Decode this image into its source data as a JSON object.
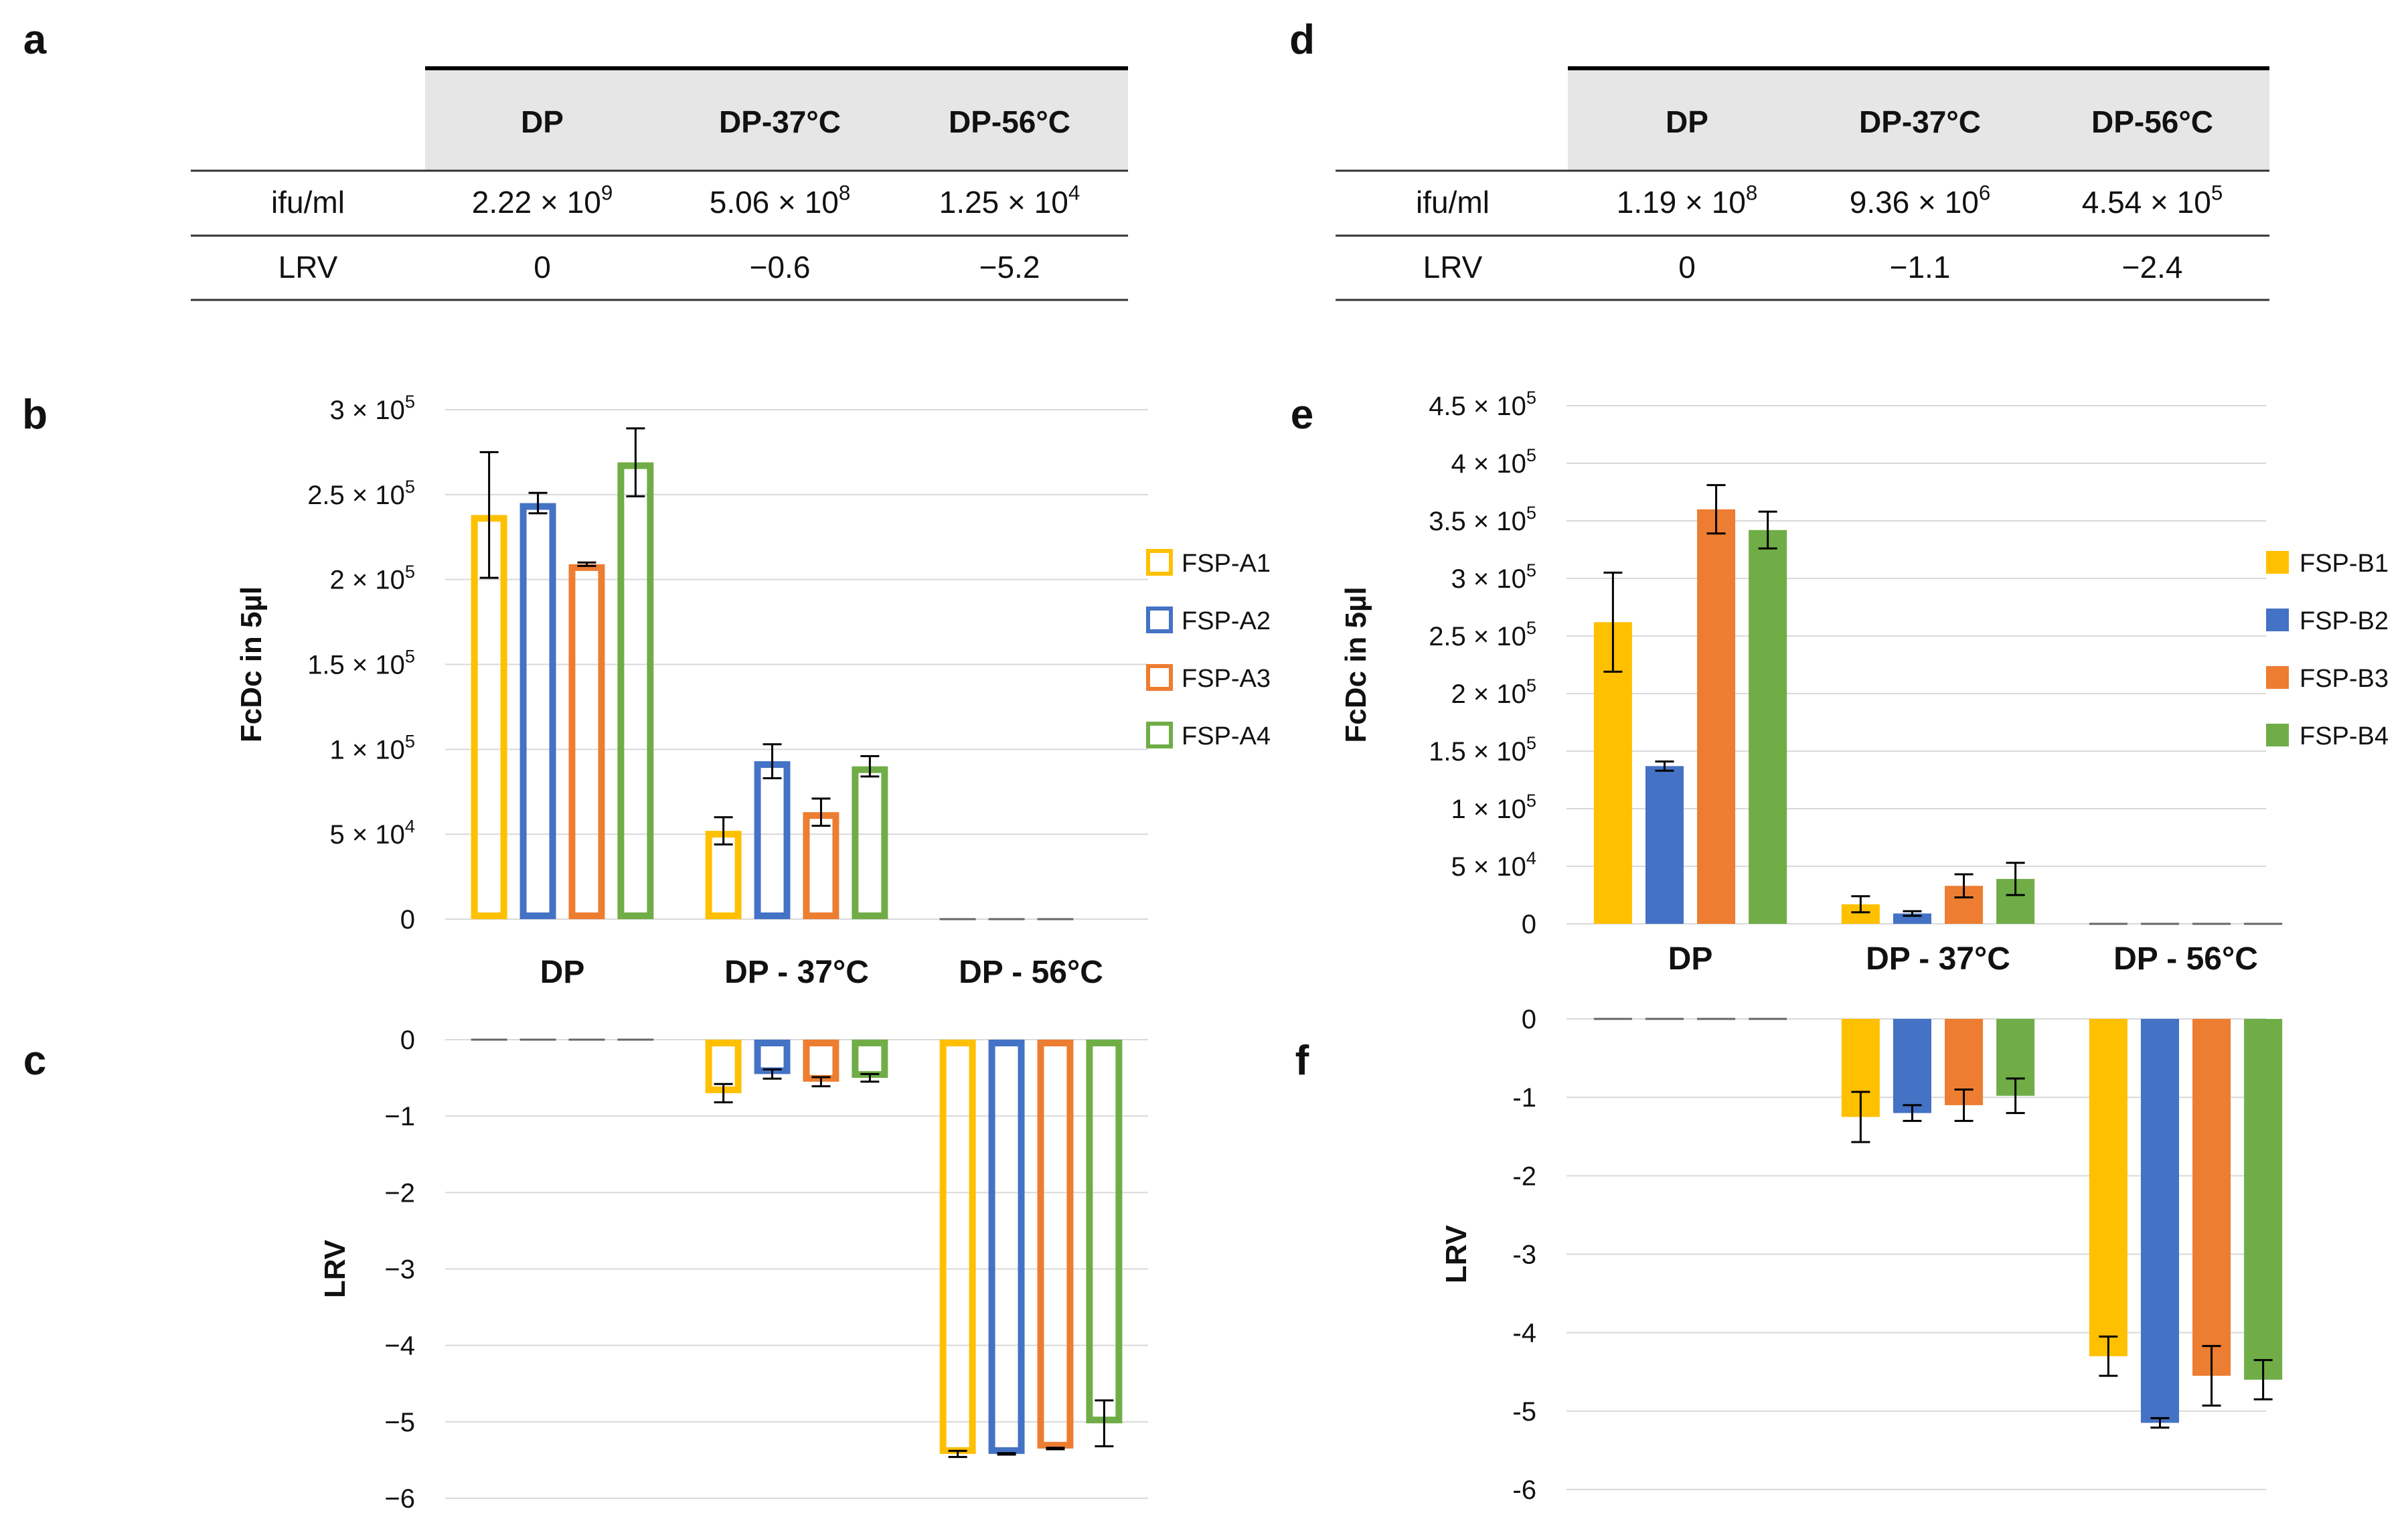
{
  "panel_labels": {
    "a": "a",
    "b": "b",
    "c": "c",
    "d": "d",
    "e": "e",
    "f": "f"
  },
  "colors": {
    "yellow": "#FFC000",
    "blue": "#4472C4",
    "orange": "#ED7D31",
    "green": "#70AD47",
    "grid": "#D9D9D9",
    "header_bg": "#E7E6E6"
  },
  "tables": [
    {
      "panel": "a",
      "columns": [
        "DP",
        "DP-37°C",
        "DP-56°C"
      ],
      "rows": [
        {
          "label": "ifu/ml",
          "cells": [
            [
              "2.22 × 10",
              "9"
            ],
            [
              "5.06 × 10",
              "8"
            ],
            [
              "1.25 × 10",
              "4"
            ]
          ]
        },
        {
          "label": "LRV",
          "cells": [
            [
              "0",
              ""
            ],
            [
              "−0.6",
              ""
            ],
            [
              "−5.2",
              ""
            ]
          ]
        }
      ]
    },
    {
      "panel": "d",
      "columns": [
        "DP",
        "DP-37°C",
        "DP-56°C"
      ],
      "rows": [
        {
          "label": "ifu/ml",
          "cells": [
            [
              "1.19 × 10",
              "8"
            ],
            [
              "9.36 × 10",
              "6"
            ],
            [
              "4.54 × 10",
              "5"
            ]
          ]
        },
        {
          "label": "LRV",
          "cells": [
            [
              "0",
              ""
            ],
            [
              "−1.1",
              ""
            ],
            [
              "−2.4",
              ""
            ]
          ]
        }
      ]
    }
  ],
  "chart_data": [
    {
      "panel": "b",
      "type": "bar",
      "style": "outline",
      "ylabel": "FcDc in 5µl",
      "ylim": [
        0,
        300000
      ],
      "categories": [
        "DP",
        "DP - 37°C",
        "DP - 56°C"
      ],
      "yticks": [
        {
          "v": 0,
          "m": "0",
          "e": ""
        },
        {
          "v": 50000,
          "m": "5 × 10",
          "e": "4"
        },
        {
          "v": 100000,
          "m": "1 × 10",
          "e": "5"
        },
        {
          "v": 150000,
          "m": "1.5 × 10",
          "e": "5"
        },
        {
          "v": 200000,
          "m": "2 × 10",
          "e": "5"
        },
        {
          "v": 250000,
          "m": "2.5 × 10",
          "e": "5"
        },
        {
          "v": 300000,
          "m": "3 × 10",
          "e": "5"
        }
      ],
      "series": [
        {
          "name": "FSP-A1",
          "color": "yellow",
          "values": [
            238000,
            52000,
            0
          ],
          "errors": [
            37000,
            8000,
            0
          ]
        },
        {
          "name": "FSP-A2",
          "color": "blue",
          "values": [
            245000,
            93000,
            0
          ],
          "errors": [
            6000,
            10000,
            0
          ]
        },
        {
          "name": "FSP-A3",
          "color": "orange",
          "values": [
            209000,
            63000,
            0
          ],
          "errors": [
            1000,
            8000,
            0
          ]
        },
        {
          "name": "FSP-A4",
          "color": "green",
          "values": [
            269000,
            90000,
            1000
          ],
          "errors": [
            20000,
            6000,
            0
          ]
        }
      ]
    },
    {
      "panel": "c",
      "type": "bar",
      "style": "outline",
      "ylabel": "LRV",
      "ylim": [
        -6,
        0
      ],
      "yticks": [
        {
          "v": 0,
          "m": "0"
        },
        {
          "v": -1,
          "m": "−1"
        },
        {
          "v": -2,
          "m": "−2"
        },
        {
          "v": -3,
          "m": "−3"
        },
        {
          "v": -4,
          "m": "−4"
        },
        {
          "v": -5,
          "m": "−5"
        },
        {
          "v": -6,
          "m": "−6"
        }
      ],
      "series": [
        {
          "name": "FSP-A1",
          "color": "yellow",
          "values": [
            0,
            -0.7,
            -5.42
          ],
          "errors": [
            0,
            0.12,
            0.04
          ]
        },
        {
          "name": "FSP-A2",
          "color": "blue",
          "values": [
            0,
            -0.45,
            -5.42
          ],
          "errors": [
            0,
            0.06,
            0.01
          ]
        },
        {
          "name": "FSP-A3",
          "color": "orange",
          "values": [
            0,
            -0.55,
            -5.35
          ],
          "errors": [
            0,
            0.06,
            0.01
          ]
        },
        {
          "name": "FSP-A4",
          "color": "green",
          "values": [
            0,
            -0.5,
            -5.02
          ],
          "errors": [
            0,
            0.05,
            0.3
          ]
        }
      ]
    },
    {
      "panel": "e",
      "type": "bar",
      "style": "filled",
      "ylabel": "FcDc in 5µl",
      "ylim": [
        0,
        450000
      ],
      "categories": [
        "DP",
        "DP - 37°C",
        "DP - 56°C"
      ],
      "yticks": [
        {
          "v": 0,
          "m": "0",
          "e": ""
        },
        {
          "v": 50000,
          "m": "5 × 10",
          "e": "4"
        },
        {
          "v": 100000,
          "m": "1 × 10",
          "e": "5"
        },
        {
          "v": 150000,
          "m": "1.5 × 10",
          "e": "5"
        },
        {
          "v": 200000,
          "m": "2 × 10",
          "e": "5"
        },
        {
          "v": 250000,
          "m": "2.5 × 10",
          "e": "5"
        },
        {
          "v": 300000,
          "m": "3 × 10",
          "e": "5"
        },
        {
          "v": 350000,
          "m": "3.5 × 10",
          "e": "5"
        },
        {
          "v": 400000,
          "m": "4 × 10",
          "e": "5"
        },
        {
          "v": 450000,
          "m": "4.5 × 10",
          "e": "5"
        }
      ],
      "series": [
        {
          "name": "FSP-B1",
          "color": "yellow",
          "values": [
            262000,
            17000,
            500
          ],
          "errors": [
            43000,
            7000,
            0
          ]
        },
        {
          "name": "FSP-B2",
          "color": "blue",
          "values": [
            137000,
            9000,
            500
          ],
          "errors": [
            4000,
            2000,
            0
          ]
        },
        {
          "name": "FSP-B3",
          "color": "orange",
          "values": [
            360000,
            33000,
            500
          ],
          "errors": [
            21000,
            10000,
            0
          ]
        },
        {
          "name": "FSP-B4",
          "color": "green",
          "values": [
            342000,
            39000,
            500
          ],
          "errors": [
            16000,
            14000,
            0
          ]
        }
      ]
    },
    {
      "panel": "f",
      "type": "bar",
      "style": "filled",
      "ylabel": "LRV",
      "ylim": [
        -6,
        0
      ],
      "yticks": [
        {
          "v": 0,
          "m": "0"
        },
        {
          "v": -1,
          "m": "-1"
        },
        {
          "v": -2,
          "m": "-2"
        },
        {
          "v": -3,
          "m": "-3"
        },
        {
          "v": -4,
          "m": "-4"
        },
        {
          "v": -5,
          "m": "-5"
        },
        {
          "v": -6,
          "m": "-6"
        }
      ],
      "series": [
        {
          "name": "FSP-B1",
          "color": "yellow",
          "values": [
            0,
            -1.25,
            -4.3
          ],
          "errors": [
            0,
            0.32,
            0.25
          ]
        },
        {
          "name": "FSP-B2",
          "color": "blue",
          "values": [
            0,
            -1.2,
            -5.15
          ],
          "errors": [
            0,
            0.1,
            0.06
          ]
        },
        {
          "name": "FSP-B3",
          "color": "orange",
          "values": [
            0,
            -1.1,
            -4.55
          ],
          "errors": [
            0,
            0.2,
            0.38
          ]
        },
        {
          "name": "FSP-B4",
          "color": "green",
          "values": [
            0,
            -0.98,
            -4.6
          ],
          "errors": [
            0,
            0.22,
            0.25
          ]
        }
      ]
    }
  ]
}
